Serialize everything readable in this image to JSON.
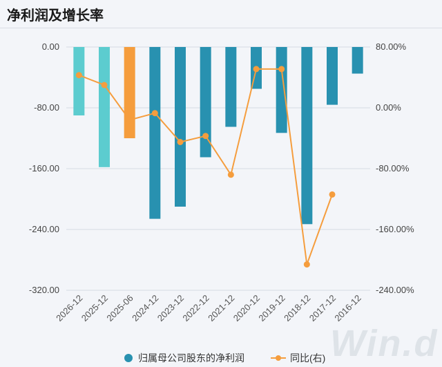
{
  "header": {
    "title": "净利润及增长率"
  },
  "watermark": "Win.d",
  "colors": {
    "bar_forecast": "#5ccccf",
    "bar_interim": "#f59d3d",
    "bar_actual": "#2891b0",
    "line": "#f59d3d",
    "grid": "#d6dbe3"
  },
  "legend": {
    "bars_label": "归属母公司股东的净利润",
    "line_label": "同比(右)"
  },
  "chart_data": {
    "type": "bar",
    "title": "净利润及增长率",
    "categories": [
      "2026-12",
      "2025-12",
      "2025-06",
      "2024-12",
      "2023-12",
      "2022-12",
      "2021-12",
      "2020-12",
      "2019-12",
      "2018-12",
      "2017-12",
      "2016-12"
    ],
    "bar_kinds": [
      "forecast",
      "forecast",
      "interim",
      "actual",
      "actual",
      "actual",
      "actual",
      "actual",
      "actual",
      "actual",
      "actual",
      "actual"
    ],
    "series": [
      {
        "name": "归属母公司股东的净利润",
        "type": "bar",
        "axis": "left",
        "values": [
          -90,
          -158,
          -120,
          -226,
          -210,
          -145,
          -105,
          -55,
          -113,
          -233,
          -76,
          -35
        ]
      },
      {
        "name": "同比(右)",
        "type": "line",
        "axis": "right",
        "values": [
          43,
          30,
          -16,
          -7,
          -45,
          -37,
          -88,
          51,
          51,
          -206,
          -114,
          null
        ]
      }
    ],
    "y_left": {
      "range": [
        -320,
        0
      ],
      "ticks": [
        "0.00",
        "-80.00",
        "-160.00",
        "-240.00",
        "-320.00"
      ],
      "tick_values": [
        0,
        -80,
        -160,
        -240,
        -320
      ]
    },
    "y_right": {
      "range": [
        -240,
        80
      ],
      "ticks": [
        "80.00%",
        "0.00%",
        "-80.00%",
        "-160.00%",
        "-240.00%"
      ],
      "tick_values": [
        80,
        0,
        -80,
        -160,
        -240
      ]
    },
    "grid": true,
    "legend_position": "bottom"
  }
}
